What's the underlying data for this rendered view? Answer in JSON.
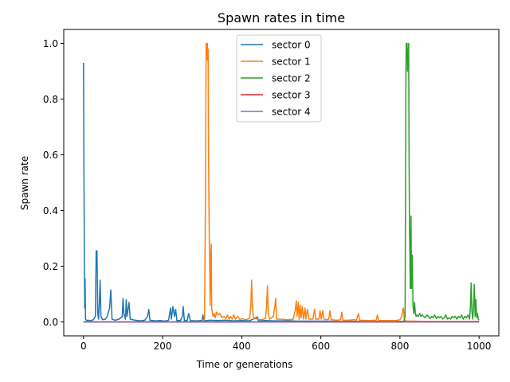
{
  "chart_data": {
    "type": "line",
    "title": "Spawn rates in time",
    "xlabel": "Time or generations",
    "ylabel": "Spawn rate",
    "xlim": [
      -50,
      1050
    ],
    "ylim": [
      -0.05,
      1.05
    ],
    "xticks": [
      0,
      200,
      400,
      600,
      800,
      1000
    ],
    "yticks": [
      0.0,
      0.2,
      0.4,
      0.6,
      0.8,
      1.0
    ],
    "xtick_labels": [
      "0",
      "200",
      "400",
      "600",
      "800",
      "1000"
    ],
    "ytick_labels": [
      "0.0",
      "0.2",
      "0.4",
      "0.6",
      "0.8",
      "1.0"
    ],
    "grid": false,
    "legend_position": "top-center",
    "series": [
      {
        "name": "sector 0",
        "color": "#1f77b4",
        "points": [
          [
            0,
            0.93
          ],
          [
            1,
            0.55
          ],
          [
            2,
            0.27
          ],
          [
            3,
            0.05
          ],
          [
            4,
            0.155
          ],
          [
            5,
            0.01
          ],
          [
            8,
            0.005
          ],
          [
            12,
            0.006
          ],
          [
            18,
            0.004
          ],
          [
            25,
            0.008
          ],
          [
            30,
            0.02
          ],
          [
            32,
            0.255
          ],
          [
            34,
            0.255
          ],
          [
            36,
            0.03
          ],
          [
            38,
            0.01
          ],
          [
            40,
            0.07
          ],
          [
            42,
            0.15
          ],
          [
            44,
            0.02
          ],
          [
            48,
            0.008
          ],
          [
            55,
            0.01
          ],
          [
            60,
            0.02
          ],
          [
            66,
            0.05
          ],
          [
            69,
            0.115
          ],
          [
            72,
            0.01
          ],
          [
            80,
            0.006
          ],
          [
            90,
            0.01
          ],
          [
            98,
            0.02
          ],
          [
            100,
            0.085
          ],
          [
            102,
            0.03
          ],
          [
            106,
            0.01
          ],
          [
            108,
            0.08
          ],
          [
            110,
            0.02
          ],
          [
            115,
            0.07
          ],
          [
            118,
            0.01
          ],
          [
            130,
            0.006
          ],
          [
            145,
            0.004
          ],
          [
            155,
            0.006
          ],
          [
            162,
            0.02
          ],
          [
            165,
            0.045
          ],
          [
            168,
            0.006
          ],
          [
            180,
            0.004
          ],
          [
            195,
            0.005
          ],
          [
            205,
            0.003
          ],
          [
            215,
            0.006
          ],
          [
            220,
            0.05
          ],
          [
            222,
            0.01
          ],
          [
            226,
            0.055
          ],
          [
            230,
            0.02
          ],
          [
            233,
            0.045
          ],
          [
            236,
            0.005
          ],
          [
            245,
            0.005
          ],
          [
            250,
            0.02
          ],
          [
            252,
            0.055
          ],
          [
            255,
            0.005
          ],
          [
            262,
            0.005
          ],
          [
            266,
            0.03
          ],
          [
            270,
            0.005
          ],
          [
            280,
            0.004
          ],
          [
            290,
            0.004
          ],
          [
            300,
            0.006
          ],
          [
            302,
            0.025
          ],
          [
            305,
            0.004
          ],
          [
            320,
            0.006
          ],
          [
            340,
            0.005
          ],
          [
            360,
            0.006
          ],
          [
            380,
            0.004
          ],
          [
            400,
            0.005
          ],
          [
            420,
            0.004
          ],
          [
            440,
            0.018
          ],
          [
            442,
            0.004
          ],
          [
            460,
            0.005
          ],
          [
            480,
            0.004
          ],
          [
            500,
            0.004
          ],
          [
            520,
            0.004
          ],
          [
            540,
            0.003
          ],
          [
            560,
            0.003
          ],
          [
            580,
            0.003
          ],
          [
            600,
            0.003
          ],
          [
            620,
            0.003
          ],
          [
            640,
            0.002
          ],
          [
            660,
            0.002
          ],
          [
            680,
            0.002
          ],
          [
            700,
            0.002
          ],
          [
            720,
            0.002
          ],
          [
            740,
            0.002
          ],
          [
            760,
            0.002
          ],
          [
            780,
            0.002
          ],
          [
            800,
            0.002
          ],
          [
            820,
            0.002
          ],
          [
            840,
            0.002
          ],
          [
            860,
            0.002
          ],
          [
            880,
            0.002
          ],
          [
            900,
            0.002
          ],
          [
            920,
            0.002
          ],
          [
            940,
            0.002
          ],
          [
            960,
            0.002
          ],
          [
            980,
            0.002
          ],
          [
            1000,
            0.002
          ]
        ]
      },
      {
        "name": "sector 1",
        "color": "#ff7f0e",
        "points": [
          [
            0,
            0.0
          ],
          [
            300,
            0.0
          ],
          [
            303,
            0.005
          ],
          [
            306,
            0.01
          ],
          [
            308,
            0.4
          ],
          [
            310,
            1.0
          ],
          [
            312,
            0.94
          ],
          [
            313,
            1.0
          ],
          [
            314,
            0.96
          ],
          [
            315,
            0.98
          ],
          [
            316,
            0.6
          ],
          [
            318,
            0.28
          ],
          [
            319,
            0.2
          ],
          [
            320,
            0.06
          ],
          [
            322,
            0.25
          ],
          [
            323,
            0.28
          ],
          [
            324,
            0.05
          ],
          [
            326,
            0.03
          ],
          [
            328,
            0.02
          ],
          [
            330,
            0.03
          ],
          [
            333,
            0.015
          ],
          [
            336,
            0.035
          ],
          [
            340,
            0.025
          ],
          [
            345,
            0.03
          ],
          [
            350,
            0.015
          ],
          [
            355,
            0.02
          ],
          [
            360,
            0.012
          ],
          [
            364,
            0.025
          ],
          [
            368,
            0.01
          ],
          [
            372,
            0.02
          ],
          [
            376,
            0.01
          ],
          [
            380,
            0.025
          ],
          [
            384,
            0.01
          ],
          [
            390,
            0.02
          ],
          [
            395,
            0.008
          ],
          [
            400,
            0.012
          ],
          [
            410,
            0.008
          ],
          [
            420,
            0.012
          ],
          [
            423,
            0.06
          ],
          [
            425,
            0.15
          ],
          [
            427,
            0.05
          ],
          [
            430,
            0.012
          ],
          [
            440,
            0.01
          ],
          [
            450,
            0.008
          ],
          [
            460,
            0.012
          ],
          [
            463,
            0.06
          ],
          [
            465,
            0.13
          ],
          [
            467,
            0.03
          ],
          [
            470,
            0.01
          ],
          [
            480,
            0.02
          ],
          [
            484,
            0.06
          ],
          [
            486,
            0.085
          ],
          [
            488,
            0.01
          ],
          [
            500,
            0.01
          ],
          [
            510,
            0.008
          ],
          [
            520,
            0.008
          ],
          [
            530,
            0.01
          ],
          [
            535,
            0.04
          ],
          [
            538,
            0.075
          ],
          [
            540,
            0.02
          ],
          [
            543,
            0.07
          ],
          [
            545,
            0.01
          ],
          [
            548,
            0.06
          ],
          [
            550,
            0.015
          ],
          [
            553,
            0.055
          ],
          [
            556,
            0.01
          ],
          [
            560,
            0.05
          ],
          [
            562,
            0.01
          ],
          [
            566,
            0.045
          ],
          [
            570,
            0.01
          ],
          [
            580,
            0.01
          ],
          [
            584,
            0.045
          ],
          [
            587,
            0.01
          ],
          [
            595,
            0.01
          ],
          [
            598,
            0.04
          ],
          [
            601,
            0.01
          ],
          [
            605,
            0.04
          ],
          [
            608,
            0.01
          ],
          [
            615,
            0.008
          ],
          [
            620,
            0.01
          ],
          [
            623,
            0.04
          ],
          [
            626,
            0.008
          ],
          [
            640,
            0.006
          ],
          [
            650,
            0.008
          ],
          [
            653,
            0.035
          ],
          [
            656,
            0.006
          ],
          [
            670,
            0.006
          ],
          [
            685,
            0.008
          ],
          [
            690,
            0.006
          ],
          [
            695,
            0.03
          ],
          [
            698,
            0.006
          ],
          [
            720,
            0.005
          ],
          [
            740,
            0.006
          ],
          [
            743,
            0.025
          ],
          [
            746,
            0.005
          ],
          [
            770,
            0.005
          ],
          [
            790,
            0.005
          ],
          [
            800,
            0.008
          ],
          [
            805,
            0.02
          ],
          [
            807,
            0.045
          ],
          [
            809,
            0.05
          ],
          [
            811,
            0.01
          ],
          [
            815,
            0.003
          ],
          [
            830,
            0.003
          ],
          [
            860,
            0.002
          ],
          [
            900,
            0.002
          ],
          [
            950,
            0.002
          ],
          [
            1000,
            0.002
          ]
        ]
      },
      {
        "name": "sector 2",
        "color": "#2ca02c",
        "points": [
          [
            0,
            0.0
          ],
          [
            805,
            0.0
          ],
          [
            810,
            0.002
          ],
          [
            813,
            0.02
          ],
          [
            815,
            0.9
          ],
          [
            816,
            1.0
          ],
          [
            817,
            0.97
          ],
          [
            818,
            1.0
          ],
          [
            819,
            0.9
          ],
          [
            820,
            0.98
          ],
          [
            821,
            0.95
          ],
          [
            822,
            1.0
          ],
          [
            823,
            0.6
          ],
          [
            824,
            0.35
          ],
          [
            825,
            0.25
          ],
          [
            826,
            0.12
          ],
          [
            827,
            0.3
          ],
          [
            828,
            0.38
          ],
          [
            829,
            0.12
          ],
          [
            830,
            0.2
          ],
          [
            831,
            0.24
          ],
          [
            832,
            0.15
          ],
          [
            833,
            0.06
          ],
          [
            835,
            0.03
          ],
          [
            837,
            0.07
          ],
          [
            839,
            0.03
          ],
          [
            841,
            0.02
          ],
          [
            843,
            0.025
          ],
          [
            846,
            0.02
          ],
          [
            850,
            0.03
          ],
          [
            853,
            0.02
          ],
          [
            856,
            0.025
          ],
          [
            860,
            0.02
          ],
          [
            864,
            0.015
          ],
          [
            868,
            0.025
          ],
          [
            872,
            0.02
          ],
          [
            876,
            0.012
          ],
          [
            880,
            0.02
          ],
          [
            884,
            0.015
          ],
          [
            888,
            0.025
          ],
          [
            892,
            0.012
          ],
          [
            896,
            0.02
          ],
          [
            900,
            0.015
          ],
          [
            904,
            0.02
          ],
          [
            908,
            0.01
          ],
          [
            912,
            0.015
          ],
          [
            916,
            0.025
          ],
          [
            920,
            0.01
          ],
          [
            924,
            0.015
          ],
          [
            928,
            0.01
          ],
          [
            932,
            0.02
          ],
          [
            936,
            0.015
          ],
          [
            940,
            0.02
          ],
          [
            944,
            0.01
          ],
          [
            948,
            0.02
          ],
          [
            952,
            0.015
          ],
          [
            956,
            0.025
          ],
          [
            960,
            0.01
          ],
          [
            964,
            0.02
          ],
          [
            968,
            0.015
          ],
          [
            972,
            0.025
          ],
          [
            976,
            0.01
          ],
          [
            978,
            0.05
          ],
          [
            980,
            0.14
          ],
          [
            982,
            0.035
          ],
          [
            984,
            0.01
          ],
          [
            986,
            0.05
          ],
          [
            988,
            0.135
          ],
          [
            990,
            0.02
          ],
          [
            992,
            0.08
          ],
          [
            994,
            0.015
          ],
          [
            996,
            0.03
          ],
          [
            998,
            0.01
          ],
          [
            1000,
            0.006
          ]
        ]
      },
      {
        "name": "sector 3",
        "color": "#d62728",
        "points": [
          [
            0,
            0.0
          ],
          [
            250,
            0.0
          ],
          [
            500,
            0.0
          ],
          [
            750,
            0.0
          ],
          [
            1000,
            0.0
          ]
        ]
      },
      {
        "name": "sector 4",
        "color": "#9467bd",
        "points": [
          [
            0,
            0.0
          ],
          [
            250,
            0.0
          ],
          [
            500,
            0.0
          ],
          [
            750,
            0.0
          ],
          [
            1000,
            0.0
          ]
        ]
      }
    ]
  }
}
